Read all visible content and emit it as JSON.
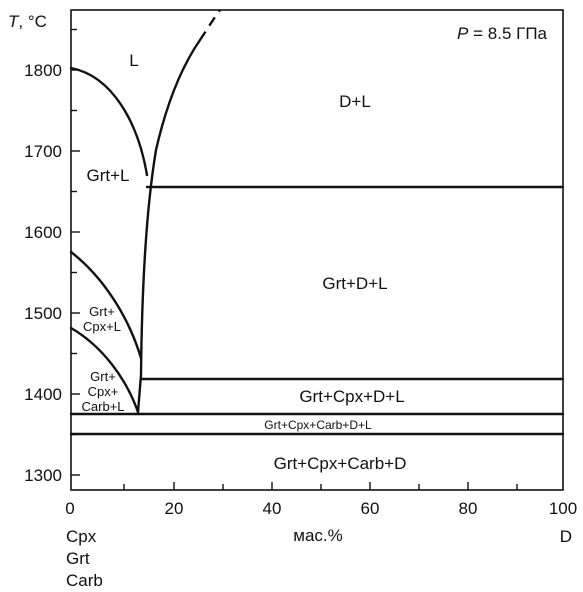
{
  "pressure": {
    "symbol": "P",
    "text": " = 8.5 ГПа"
  },
  "y_axis": {
    "symbol": "T",
    "unit": ", °C",
    "ticks": [
      "1300",
      "1400",
      "1500",
      "1600",
      "1700",
      "1800"
    ],
    "range": [
      1260,
      1860
    ]
  },
  "x_axis": {
    "label": "мас.%",
    "ticks": [
      "0",
      "20",
      "40",
      "60",
      "80",
      "100"
    ],
    "range": [
      0,
      100
    ],
    "left_end": [
      "Cpx",
      "Grt",
      "Carb"
    ],
    "right_end": "D"
  },
  "fields": {
    "l": "L",
    "d_l": "D+L",
    "grt_l": "Grt+L",
    "grt_d_l": "Grt+D+L",
    "grt_cpx_l": [
      "Grt+",
      "Cpx+L"
    ],
    "grt_cpx_carb_l": [
      "Grt+",
      "Cpx+",
      "Carb+L"
    ],
    "grt_cpx_d_l": "Grt+Cpx+D+L",
    "grt_cpx_carb_d_l": "Grt+Cpx+Carb+D+L",
    "grt_cpx_carb_d": "Grt+Cpx+Carb+D"
  },
  "isotherms_c": [
    1645,
    1408,
    1366,
    1344
  ]
}
